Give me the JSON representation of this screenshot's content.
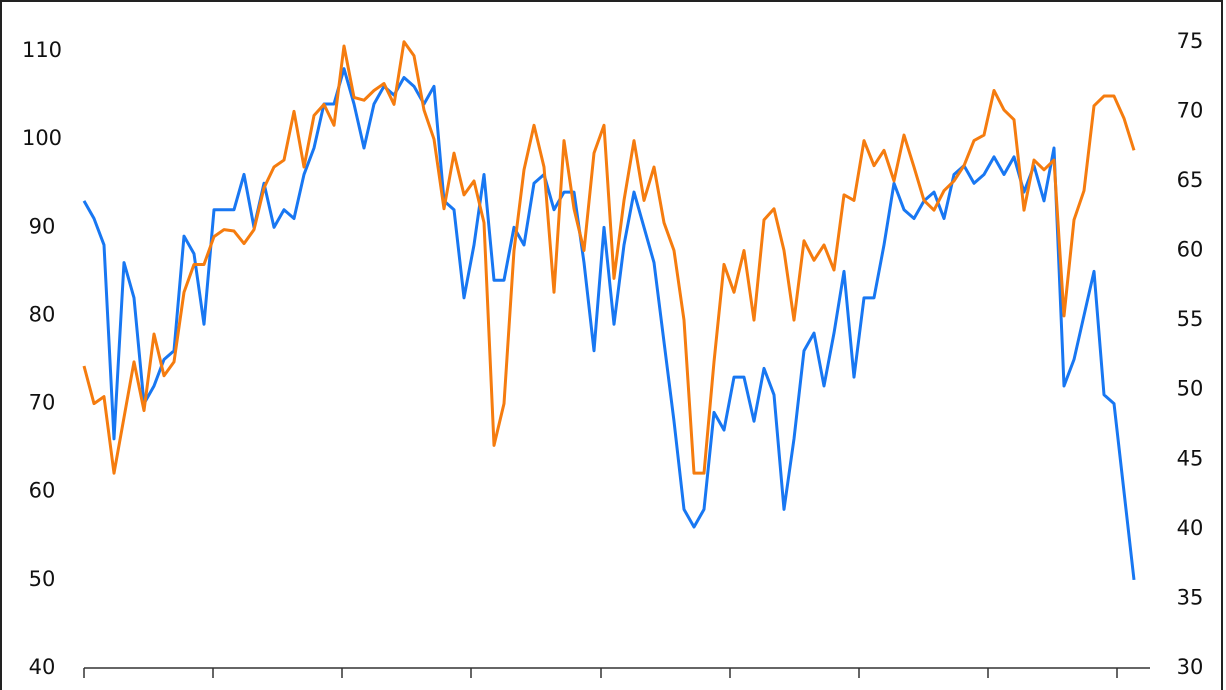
{
  "chart_data": {
    "type": "line",
    "categories": [
      null,
      null,
      null,
      null,
      null,
      null,
      null,
      null,
      null,
      null,
      null,
      null,
      null,
      null,
      null,
      null,
      null,
      null,
      null,
      null,
      null,
      null,
      null,
      null,
      null,
      null,
      null,
      null,
      null,
      null,
      null,
      null,
      null,
      null,
      null,
      null,
      null,
      null,
      null,
      null,
      null,
      null,
      null,
      null,
      null,
      null,
      null,
      null,
      null,
      null,
      null,
      null,
      null,
      null,
      null,
      null,
      null,
      null,
      null,
      null,
      null,
      null,
      null,
      null,
      null,
      null,
      null,
      null,
      null,
      null,
      null,
      null,
      null,
      null,
      null,
      null,
      null,
      null,
      null,
      null,
      null,
      null,
      null,
      null,
      null,
      null,
      null,
      null,
      null,
      null,
      null,
      null,
      null,
      null,
      null,
      null,
      null,
      null,
      null,
      null,
      null,
      null,
      null,
      null,
      null,
      null
    ],
    "ylim": [
      40,
      115
    ],
    "yticks": [
      40,
      50,
      60,
      70,
      80,
      90,
      100,
      110
    ],
    "y2lim": [
      30,
      77.5
    ],
    "y2ticks": [
      30,
      35,
      40,
      45,
      50,
      55,
      60,
      65,
      70,
      75
    ],
    "series": [
      {
        "color": "#1877f2",
        "axis": "y",
        "values": [
          93,
          91,
          88,
          66,
          86,
          82,
          70,
          72,
          75,
          76,
          89,
          87,
          79,
          92,
          92,
          92,
          96,
          90,
          95,
          90,
          92,
          91,
          96,
          99,
          104,
          104,
          108,
          104,
          99,
          104,
          106,
          105,
          107,
          106,
          104,
          106,
          93,
          92,
          82,
          88,
          96,
          84,
          84,
          90,
          88,
          95,
          96,
          92,
          94,
          94,
          86,
          76,
          90,
          79,
          88,
          94,
          90,
          86,
          77,
          68,
          58,
          56,
          58,
          69,
          67,
          73,
          73,
          68,
          74,
          71,
          58,
          66,
          76,
          78,
          72,
          78,
          85,
          73,
          82,
          82,
          88,
          95,
          92,
          91,
          93,
          94,
          91,
          96,
          97,
          95,
          96,
          98,
          96,
          98,
          94,
          97,
          93,
          99,
          72,
          75,
          80,
          85,
          71,
          70,
          60,
          50
        ]
      },
      {
        "color": "#f57c0f",
        "axis": "y2",
        "values": [
          51.7,
          49,
          49.5,
          44,
          48,
          52,
          48.5,
          54,
          51,
          52,
          57,
          59,
          59,
          61,
          61.5,
          61.4,
          60.5,
          61.5,
          64.5,
          66,
          66.5,
          70,
          66,
          69.7,
          70.5,
          69,
          74.7,
          71,
          70.8,
          71.5,
          72,
          70.5,
          75,
          74,
          70.1,
          68,
          63,
          67,
          64,
          65,
          62,
          46,
          49,
          60,
          65.8,
          69,
          66,
          57,
          67.9,
          63,
          60,
          67,
          69,
          58,
          63.6,
          67.9,
          63.6,
          66,
          62,
          60,
          55,
          44,
          44,
          52,
          59,
          57,
          60,
          55,
          62.2,
          63,
          60,
          55,
          60.7,
          59.3,
          60.4,
          58.6,
          64,
          63.6,
          67.9,
          66.1,
          67.2,
          65,
          68.3,
          66,
          63.6,
          62.9,
          64.3,
          65,
          66.1,
          67.9,
          68.3,
          71.5,
          70.1,
          69.4,
          62.9,
          66.5,
          65.8,
          66.5,
          55.3,
          62.2,
          64.3,
          70.4,
          71.1,
          71.1,
          69.5,
          67.2
        ]
      }
    ]
  }
}
